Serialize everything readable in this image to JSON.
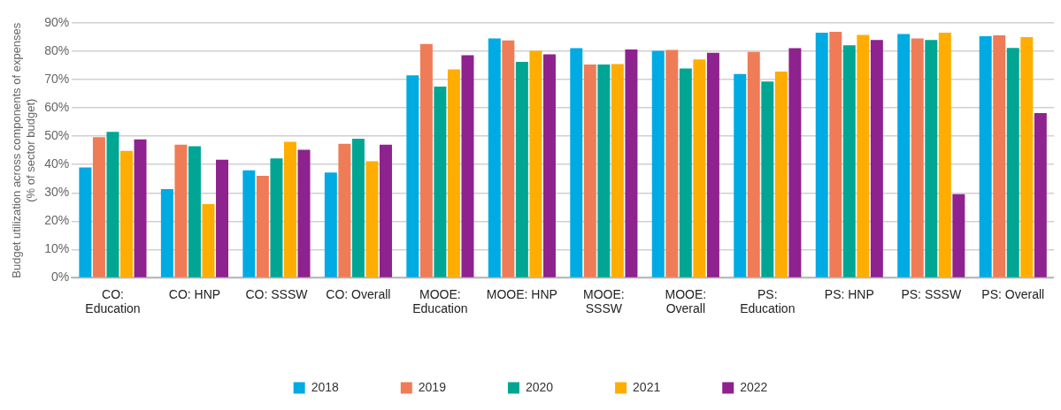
{
  "chart_data": {
    "type": "bar",
    "ylabel": "Budget utilization across components of expenses\n(% of sector budget)",
    "categories": [
      "CO: Education",
      "CO: HNP",
      "CO: SSSW",
      "CO: Overall",
      "MOOE: Education",
      "MOOE: HNP",
      "MOOE: SSSW",
      "MOOE: Overall",
      "PS: Education",
      "PS: HNP",
      "PS: SSSW",
      "PS: Overall"
    ],
    "series": [
      {
        "name": "2018",
        "color": "#00aae2",
        "values": [
          39,
          31.3,
          38,
          37.2,
          71.5,
          84.5,
          81.1,
          80.2,
          72,
          86.6,
          86.1,
          85.3
        ]
      },
      {
        "name": "2019",
        "color": "#ef7c56",
        "values": [
          49.7,
          47,
          36,
          47.3,
          82.6,
          83.8,
          75.3,
          80.5,
          79.8,
          86.9,
          84.5,
          85.6
        ]
      },
      {
        "name": "2020",
        "color": "#00a693",
        "values": [
          51.5,
          46.5,
          42.2,
          49.1,
          67.5,
          76.3,
          75.3,
          73.9,
          69.3,
          82.1,
          84,
          81.2
        ]
      },
      {
        "name": "2021",
        "color": "#ffad00",
        "values": [
          44.8,
          26,
          48,
          41.2,
          73.6,
          80.2,
          75.5,
          77.1,
          72.8,
          85.8,
          86.6,
          85
        ]
      },
      {
        "name": "2022",
        "color": "#8e228e",
        "values": [
          48.9,
          41.7,
          45.2,
          47,
          78.6,
          78.9,
          80.6,
          79.5,
          81.1,
          84,
          29.5,
          58.2
        ]
      }
    ],
    "ylim": [
      0,
      90
    ],
    "yticks": [
      {
        "value": 0,
        "label": "0%"
      },
      {
        "value": 10,
        "label": "10%"
      },
      {
        "value": 20,
        "label": "20%"
      },
      {
        "value": 30,
        "label": "30%"
      },
      {
        "value": 40,
        "label": "40%"
      },
      {
        "value": 50,
        "label": "50%"
      },
      {
        "value": 60,
        "label": "60%"
      },
      {
        "value": 70,
        "label": "70%"
      },
      {
        "value": 80,
        "label": "80%"
      },
      {
        "value": 90,
        "label": "90%"
      }
    ],
    "grid": "y",
    "legend": "bottom"
  }
}
